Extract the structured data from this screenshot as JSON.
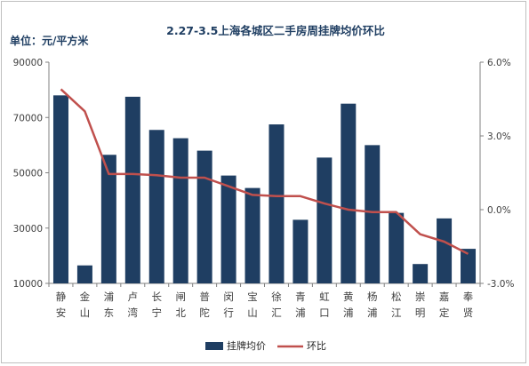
{
  "chart_data": {
    "type": "bar",
    "title": "2.27-3.5上海各城区二手房周挂牌均价环比",
    "ylabel": "单位：元/平方米",
    "y_ticks": [
      "90000",
      "70000",
      "50000",
      "30000",
      "10000"
    ],
    "y2_ticks": [
      "6.0%",
      "3.0%",
      "0.0%",
      "-3.0%"
    ],
    "ylim": [
      10000,
      90000
    ],
    "y2lim": [
      -3.0,
      6.0
    ],
    "categories": [
      [
        "静",
        "安"
      ],
      [
        "金",
        "山"
      ],
      [
        "浦",
        "东"
      ],
      [
        "卢",
        "湾"
      ],
      [
        "长",
        "宁"
      ],
      [
        "闸",
        "北"
      ],
      [
        "普",
        "陀"
      ],
      [
        "闵",
        "行"
      ],
      [
        "宝",
        "山"
      ],
      [
        "徐",
        "汇"
      ],
      [
        "青",
        "浦"
      ],
      [
        "虹",
        "口"
      ],
      [
        "黄",
        "浦"
      ],
      [
        "杨",
        "浦"
      ],
      [
        "松",
        "江"
      ],
      [
        "崇",
        "明"
      ],
      [
        "嘉",
        "定"
      ],
      [
        "奉",
        "贤"
      ]
    ],
    "series": [
      {
        "name": "挂牌均价",
        "type": "bar",
        "axis": "left",
        "color": "#1f3e62",
        "values": [
          78000,
          16500,
          56500,
          77500,
          65500,
          62500,
          58000,
          49000,
          44500,
          67500,
          33000,
          55500,
          75000,
          60000,
          35500,
          17000,
          33500,
          22500
        ]
      },
      {
        "name": "环比",
        "type": "line",
        "axis": "right",
        "color": "#c0504d",
        "values": [
          4.9,
          4.0,
          1.45,
          1.45,
          1.4,
          1.3,
          1.3,
          0.95,
          0.6,
          0.55,
          0.55,
          0.25,
          0.0,
          -0.1,
          -0.1,
          -1.0,
          -1.3,
          -1.8
        ]
      }
    ],
    "legend_position": "bottom",
    "grid": false
  }
}
